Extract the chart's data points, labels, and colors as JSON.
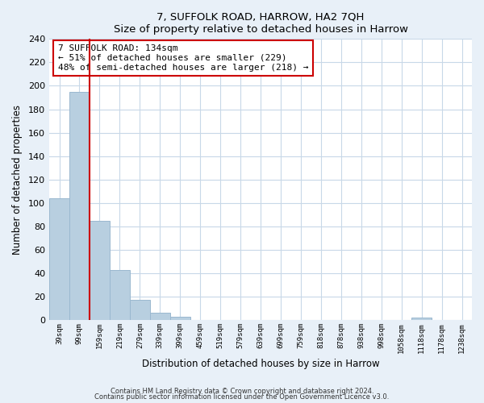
{
  "title": "7, SUFFOLK ROAD, HARROW, HA2 7QH",
  "subtitle": "Size of property relative to detached houses in Harrow",
  "xlabel": "Distribution of detached houses by size in Harrow",
  "ylabel": "Number of detached properties",
  "bar_labels": [
    "39sqm",
    "99sqm",
    "159sqm",
    "219sqm",
    "279sqm",
    "339sqm",
    "399sqm",
    "459sqm",
    "519sqm",
    "579sqm",
    "639sqm",
    "699sqm",
    "759sqm",
    "818sqm",
    "878sqm",
    "938sqm",
    "998sqm",
    "1058sqm",
    "1118sqm",
    "1178sqm",
    "1238sqm"
  ],
  "bar_values": [
    104,
    195,
    85,
    43,
    17,
    6,
    3,
    0,
    0,
    0,
    0,
    0,
    0,
    0,
    0,
    0,
    0,
    0,
    2,
    0,
    0
  ],
  "bar_color": "#b8cfe0",
  "bar_edge_color": "#9ab8d0",
  "ylim": [
    0,
    240
  ],
  "yticks": [
    0,
    20,
    40,
    60,
    80,
    100,
    120,
    140,
    160,
    180,
    200,
    220,
    240
  ],
  "property_line_x": 1.5,
  "property_line_color": "#cc0000",
  "annotation_line1": "7 SUFFOLK ROAD: 134sqm",
  "annotation_line2": "← 51% of detached houses are smaller (229)",
  "annotation_line3": "48% of semi-detached houses are larger (218) →",
  "footer_line1": "Contains HM Land Registry data © Crown copyright and database right 2024.",
  "footer_line2": "Contains public sector information licensed under the Open Government Licence v3.0.",
  "background_color": "#e8f0f8",
  "plot_background_color": "#ffffff",
  "grid_color": "#c8d8e8"
}
